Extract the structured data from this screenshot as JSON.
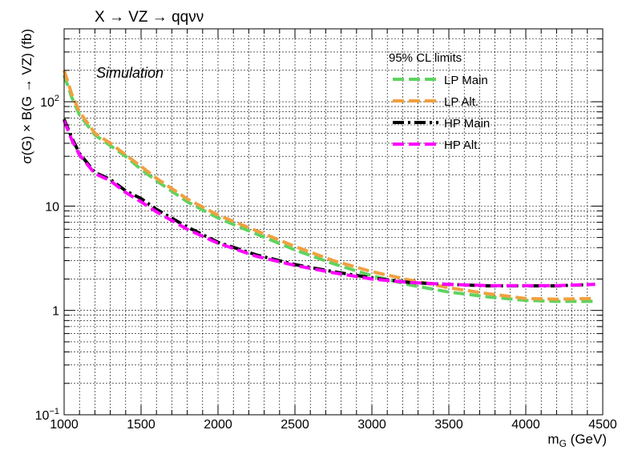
{
  "chart_data": {
    "type": "line",
    "title": "X → VZ → qqνν",
    "annotation": "Simulation",
    "xlabel": "m",
    "xlabel_sub": "G",
    "xlabel_unit": " (GeV)",
    "ylabel": "σ(G) × B(G → VZ) (fb)",
    "xlim": [
      1000,
      4500
    ],
    "ylim": [
      0.1,
      500
    ],
    "yscale": "log",
    "grid": true,
    "legend_title": "95% CL limits",
    "legend_position": "top-right",
    "x_ticks": [
      {
        "value": 1000,
        "label": "1000"
      },
      {
        "value": 1500,
        "label": "1500"
      },
      {
        "value": 2000,
        "label": "2000"
      },
      {
        "value": 2500,
        "label": "2500"
      },
      {
        "value": 3000,
        "label": "3000"
      },
      {
        "value": 3500,
        "label": "3500"
      },
      {
        "value": 4000,
        "label": "4000"
      },
      {
        "value": 4500,
        "label": "4500"
      }
    ],
    "y_ticks": [
      {
        "value": 0.1,
        "base": "10",
        "exp": "−1"
      },
      {
        "value": 1,
        "base": "1",
        "exp": ""
      },
      {
        "value": 10,
        "base": "10",
        "exp": ""
      },
      {
        "value": 100,
        "base": "10",
        "exp": "2"
      }
    ],
    "series": [
      {
        "name": "LP Main",
        "color": "#5fd35f",
        "x": [
          1000,
          1050,
          1100,
          1200,
          1300,
          1400,
          1500,
          1600,
          1800,
          2000,
          2250,
          2500,
          2750,
          3000,
          3250,
          3500,
          3750,
          4000,
          4200,
          4450
        ],
        "y": [
          180,
          110,
          75,
          48,
          38,
          30,
          22.5,
          17.5,
          11,
          7.7,
          5.4,
          3.8,
          2.8,
          2.15,
          1.75,
          1.5,
          1.35,
          1.25,
          1.22,
          1.22
        ]
      },
      {
        "name": "LP Alt.",
        "color": "#f0a040",
        "x": [
          1000,
          1050,
          1100,
          1200,
          1300,
          1400,
          1500,
          1600,
          1800,
          2000,
          2250,
          2500,
          2750,
          3000,
          3250,
          3500,
          3750,
          4000,
          4200,
          4450
        ],
        "y": [
          200,
          118,
          80,
          50,
          40,
          31,
          24,
          18.5,
          11.7,
          8.2,
          5.8,
          4.1,
          3.0,
          2.35,
          1.95,
          1.65,
          1.45,
          1.3,
          1.28,
          1.3
        ]
      },
      {
        "name": "HP Main",
        "color": "#000000",
        "x": [
          1000,
          1050,
          1100,
          1200,
          1300,
          1400,
          1500,
          1600,
          1800,
          2000,
          2250,
          2500,
          2750,
          3000,
          3250,
          3500,
          3750,
          4000,
          4200,
          4450
        ],
        "y": [
          68,
          45,
          32,
          21,
          18,
          14,
          11.8,
          9.3,
          6.3,
          4.5,
          3.4,
          2.75,
          2.35,
          2.05,
          1.85,
          1.78,
          1.72,
          1.72,
          1.72,
          1.78
        ]
      },
      {
        "name": "HP Alt.",
        "color": "#ff00ff",
        "x": [
          1000,
          1050,
          1100,
          1200,
          1300,
          1400,
          1500,
          1600,
          1800,
          2000,
          2250,
          2500,
          2750,
          3000,
          3250,
          3500,
          3750,
          4000,
          4200,
          4450
        ],
        "y": [
          66,
          43,
          31,
          20.5,
          17.5,
          13.5,
          11,
          8.8,
          6.0,
          4.4,
          3.3,
          2.7,
          2.3,
          2.0,
          1.85,
          1.78,
          1.73,
          1.73,
          1.73,
          1.78
        ]
      }
    ]
  }
}
